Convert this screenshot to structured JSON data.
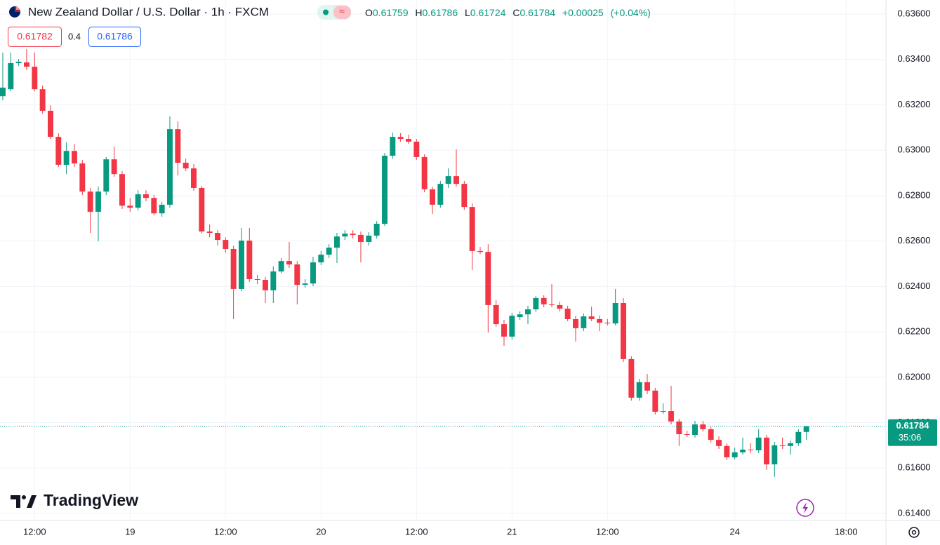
{
  "header": {
    "title": "New Zealand Dollar / U.S. Dollar · 1h · FXCM",
    "open_key": "O",
    "high_key": "H",
    "low_key": "L",
    "close_key": "C",
    "change": "+0.00025",
    "change_pct": "(+0.04%)"
  },
  "trade": {
    "sell": 0.61782,
    "spread": 0.4,
    "buy": 0.61786
  },
  "countdown": "35:06",
  "logo": "TradingView",
  "chart_data": {
    "type": "candlestick",
    "up_color": "#089981",
    "down_color": "#f23645",
    "grid": true,
    "ylim": [
      0.61369,
      0.63662
    ],
    "xlim": [
      -0.35,
      111
    ],
    "yticks": [
      {
        "value": 0.614,
        "label": "0.61400"
      },
      {
        "value": 0.616,
        "label": "0.61600"
      },
      {
        "value": 0.618,
        "label": "0.61800"
      },
      {
        "value": 0.62,
        "label": "0.62000"
      },
      {
        "value": 0.622,
        "label": "0.62200"
      },
      {
        "value": 0.624,
        "label": "0.62400"
      },
      {
        "value": 0.626,
        "label": "0.62600"
      },
      {
        "value": 0.628,
        "label": "0.62800"
      },
      {
        "value": 0.63,
        "label": "0.63000"
      },
      {
        "value": 0.632,
        "label": "0.63200"
      },
      {
        "value": 0.634,
        "label": "0.63400"
      },
      {
        "value": 0.636,
        "label": "0.63600"
      }
    ],
    "xticks": [
      {
        "value": 4,
        "label": "12:00"
      },
      {
        "value": 16,
        "label": "19"
      },
      {
        "value": 28,
        "label": "12:00"
      },
      {
        "value": 40,
        "label": "20"
      },
      {
        "value": 52,
        "label": "12:00"
      },
      {
        "value": 64,
        "label": "21"
      },
      {
        "value": 76,
        "label": "12:00"
      },
      {
        "value": 92,
        "label": "24"
      },
      {
        "value": 106,
        "label": "18:00"
      }
    ],
    "open": [
      0.63238,
      0.63269,
      0.63384,
      0.63387,
      0.63368,
      0.63269,
      0.63174,
      0.63059,
      0.62936,
      0.62997,
      0.62942,
      0.62818,
      0.62729,
      0.62818,
      0.6296,
      0.62895,
      0.62756,
      0.62747,
      0.62806,
      0.6279,
      0.62722,
      0.6276,
      0.63093,
      0.62945,
      0.6292,
      0.62834,
      0.62642,
      0.62636,
      0.62605,
      0.62565,
      0.62389,
      0.62602,
      0.62432,
      0.62429,
      0.62383,
      0.62466,
      0.62512,
      0.62497,
      0.62407,
      0.62413,
      0.62506,
      0.6254,
      0.62571,
      0.6262,
      0.62633,
      0.62627,
      0.62596,
      0.62624,
      0.62676,
      0.62976,
      0.63059,
      0.6305,
      0.63038,
      0.6297,
      0.62828,
      0.6276,
      0.62852,
      0.62886,
      0.62852,
      0.6275,
      0.62556,
      0.62552,
      0.62318,
      0.62234,
      0.62179,
      0.62265,
      0.62277,
      0.62299,
      0.62349,
      0.62321,
      0.62318,
      0.62302,
      0.62256,
      0.62216,
      0.62268,
      0.62256,
      0.6224,
      0.62237,
      0.62327,
      0.6208,
      0.6191,
      0.61978,
      0.61941,
      0.61848,
      0.61851,
      0.61805,
      0.61749,
      0.61746,
      0.61792,
      0.61771,
      0.61724,
      0.61697,
      0.61647,
      0.61669,
      0.61681,
      0.61678,
      0.61734,
      0.61616,
      0.617,
      0.61697,
      0.61709,
      0.61759
    ],
    "high": [
      0.6343,
      0.6343,
      0.63402,
      0.63446,
      0.6343,
      0.63285,
      0.63198,
      0.63075,
      0.63035,
      0.63028,
      0.62957,
      0.62834,
      0.6284,
      0.6297,
      0.63016,
      0.62908,
      0.6279,
      0.62824,
      0.62824,
      0.62803,
      0.62772,
      0.63149,
      0.63127,
      0.62963,
      0.62939,
      0.62843,
      0.62673,
      0.62648,
      0.62617,
      0.6258,
      0.62658,
      0.62658,
      0.62451,
      0.62441,
      0.62488,
      0.62525,
      0.62596,
      0.62512,
      0.62432,
      0.62531,
      0.62556,
      0.62586,
      0.62636,
      0.62648,
      0.62648,
      0.62642,
      0.62639,
      0.62688,
      0.62988,
      0.63078,
      0.63075,
      0.63069,
      0.6305,
      0.62982,
      0.6284,
      0.62865,
      0.6292,
      0.63004,
      0.62865,
      0.62766,
      0.62574,
      0.62586,
      0.62339,
      0.62253,
      0.62284,
      0.6229,
      0.62315,
      0.62358,
      0.62361,
      0.6241,
      0.62333,
      0.62315,
      0.62271,
      0.62281,
      0.62311,
      0.62271,
      0.62256,
      0.62389,
      0.62349,
      0.62092,
      0.61993,
      0.62015,
      0.61953,
      0.61885,
      0.61962,
      0.61817,
      0.61765,
      0.61808,
      0.61808,
      0.61783,
      0.6174,
      0.61709,
      0.6169,
      0.61734,
      0.61709,
      0.61771,
      0.61746,
      0.61715,
      0.61734,
      0.61721,
      0.61771,
      0.61786
    ],
    "low": [
      0.6322,
      0.6326,
      0.63371,
      0.63353,
      0.6326,
      0.63161,
      0.6305,
      0.62926,
      0.62895,
      0.62926,
      0.62803,
      0.62636,
      0.62599,
      0.62803,
      0.62883,
      0.62741,
      0.62729,
      0.62735,
      0.62775,
      0.62713,
      0.62707,
      0.62747,
      0.62889,
      0.62908,
      0.62821,
      0.62633,
      0.62617,
      0.6258,
      0.62549,
      0.62256,
      0.62379,
      0.6242,
      0.6241,
      0.62327,
      0.62327,
      0.62457,
      0.62481,
      0.62321,
      0.62395,
      0.62401,
      0.62494,
      0.62525,
      0.62503,
      0.62605,
      0.62611,
      0.62506,
      0.6258,
      0.62611,
      0.62667,
      0.62963,
      0.63038,
      0.63028,
      0.62957,
      0.62815,
      0.62719,
      0.62747,
      0.62834,
      0.6284,
      0.62738,
      0.62472,
      0.62543,
      0.62197,
      0.62222,
      0.62138,
      0.62166,
      0.62253,
      0.62234,
      0.62287,
      0.62308,
      0.62308,
      0.6229,
      0.62247,
      0.62157,
      0.62203,
      0.62247,
      0.62203,
      0.62228,
      0.62228,
      0.62067,
      0.61897,
      0.61897,
      0.61925,
      0.61836,
      0.61839,
      0.61792,
      0.61697,
      0.61737,
      0.61734,
      0.61761,
      0.61712,
      0.61684,
      0.61635,
      0.61638,
      0.61659,
      0.61666,
      0.61666,
      0.61592,
      0.61561,
      0.61684,
      0.61659,
      0.61697,
      0.61724
    ],
    "close": [
      0.63276,
      0.63384,
      0.6339,
      0.63368,
      0.63269,
      0.63174,
      0.63059,
      0.62936,
      0.62997,
      0.62942,
      0.62818,
      0.62729,
      0.62818,
      0.6296,
      0.62895,
      0.62756,
      0.62747,
      0.62806,
      0.6279,
      0.62722,
      0.6276,
      0.63093,
      0.62945,
      0.6292,
      0.62834,
      0.62642,
      0.62636,
      0.62605,
      0.62565,
      0.62389,
      0.62602,
      0.62432,
      0.62429,
      0.62383,
      0.62466,
      0.62512,
      0.62497,
      0.62407,
      0.62413,
      0.62506,
      0.6254,
      0.62571,
      0.6262,
      0.62633,
      0.62627,
      0.62596,
      0.62624,
      0.62676,
      0.62976,
      0.63059,
      0.6305,
      0.63038,
      0.6297,
      0.62828,
      0.6276,
      0.62852,
      0.62886,
      0.62852,
      0.6275,
      0.62556,
      0.62552,
      0.62318,
      0.62234,
      0.62179,
      0.62271,
      0.62277,
      0.62299,
      0.62349,
      0.62321,
      0.62318,
      0.62302,
      0.62256,
      0.62216,
      0.62268,
      0.62256,
      0.6224,
      0.62237,
      0.62327,
      0.6208,
      0.6191,
      0.61978,
      0.61941,
      0.61848,
      0.61851,
      0.61805,
      0.61749,
      0.61746,
      0.61792,
      0.61771,
      0.61724,
      0.61697,
      0.61647,
      0.61669,
      0.61681,
      0.61678,
      0.61734,
      0.61616,
      0.617,
      0.61697,
      0.61709,
      0.61759,
      0.61784
    ]
  }
}
